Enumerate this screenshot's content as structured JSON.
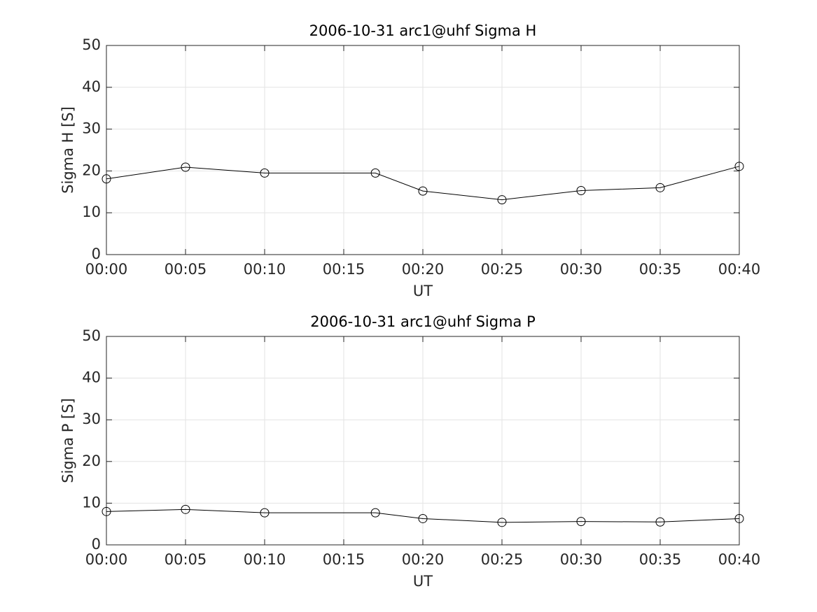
{
  "chart_data": [
    {
      "type": "line",
      "title": "2006-10-31  arc1@uhf Sigma H",
      "xlabel": "UT",
      "ylabel": "Sigma H [S]",
      "x": [
        "00:00",
        "00:05",
        "00:10",
        "00:17",
        "00:20",
        "00:25",
        "00:30",
        "00:35",
        "00:40"
      ],
      "series": [
        {
          "color": "#000000",
          "values": [
            18.1,
            20.9,
            19.5,
            19.5,
            15.2,
            13.1,
            15.3,
            16.0,
            21.1
          ]
        }
      ],
      "xlim": [
        "00:00",
        "00:40"
      ],
      "xticks": [
        "00:00",
        "00:05",
        "00:10",
        "00:15",
        "00:20",
        "00:25",
        "00:30",
        "00:35",
        "00:40"
      ],
      "ylim": [
        0,
        50
      ],
      "yticks": [
        0,
        10,
        20,
        30,
        40,
        50
      ],
      "grid": true
    },
    {
      "type": "line",
      "title": "2006-10-31  arc1@uhf Sigma P",
      "xlabel": "UT",
      "ylabel": "Sigma P [S]",
      "x": [
        "00:00",
        "00:05",
        "00:10",
        "00:17",
        "00:20",
        "00:25",
        "00:30",
        "00:35",
        "00:40"
      ],
      "series": [
        {
          "color": "#000000",
          "values": [
            8.0,
            8.5,
            7.7,
            7.7,
            6.3,
            5.4,
            5.6,
            5.5,
            6.3
          ]
        }
      ],
      "xlim": [
        "00:00",
        "00:40"
      ],
      "xticks": [
        "00:00",
        "00:05",
        "00:10",
        "00:15",
        "00:20",
        "00:25",
        "00:30",
        "00:35",
        "00:40"
      ],
      "ylim": [
        0,
        50
      ],
      "yticks": [
        0,
        10,
        20,
        30,
        40,
        50
      ],
      "grid": true
    }
  ]
}
